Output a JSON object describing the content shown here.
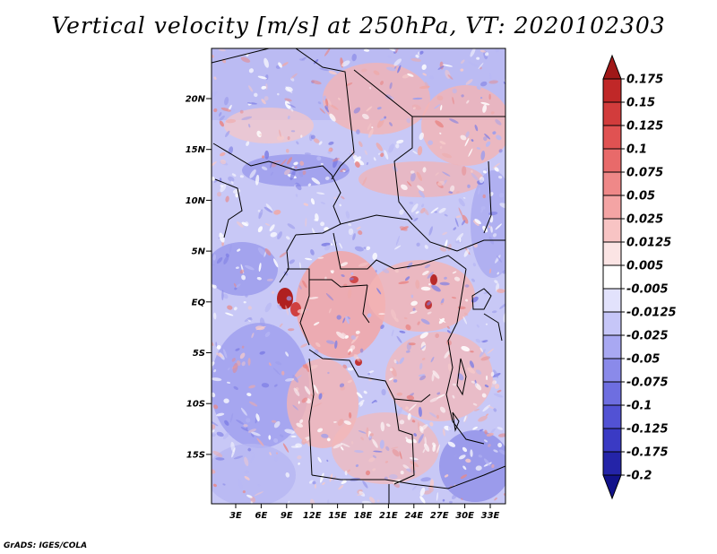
{
  "title": "Vertical velocity [m/s] at 250hPa, VT: 2020102303",
  "credit": "GrADS: IGES/COLA",
  "lat_ticks": [
    "20N",
    "15N",
    "10N",
    "5N",
    "EQ",
    "5S",
    "10S",
    "15S"
  ],
  "lon_ticks": [
    "3E",
    "6E",
    "9E",
    "12E",
    "15E",
    "18E",
    "21E",
    "24E",
    "27E",
    "30E",
    "33E"
  ],
  "colorbar": {
    "labels": [
      "0.175",
      "0.15",
      "0.125",
      "0.1",
      "0.075",
      "0.05",
      "0.025",
      "0.0125",
      "0.005",
      "-0.005",
      "-0.0125",
      "-0.025",
      "-0.05",
      "-0.075",
      "-0.1",
      "-0.125",
      "-0.175",
      "-0.2"
    ],
    "colors": [
      "#a01818",
      "#c02828",
      "#d23c3c",
      "#e05252",
      "#e86a6a",
      "#ef8888",
      "#f4a4a4",
      "#f8c4c4",
      "#fbe4e4",
      "#ffffff",
      "#e2e2fc",
      "#c6c6f8",
      "#a8a8f2",
      "#8a8aea",
      "#6e6ee0",
      "#5252d4",
      "#3a3ac4",
      "#2424a8",
      "#12128a"
    ]
  }
}
